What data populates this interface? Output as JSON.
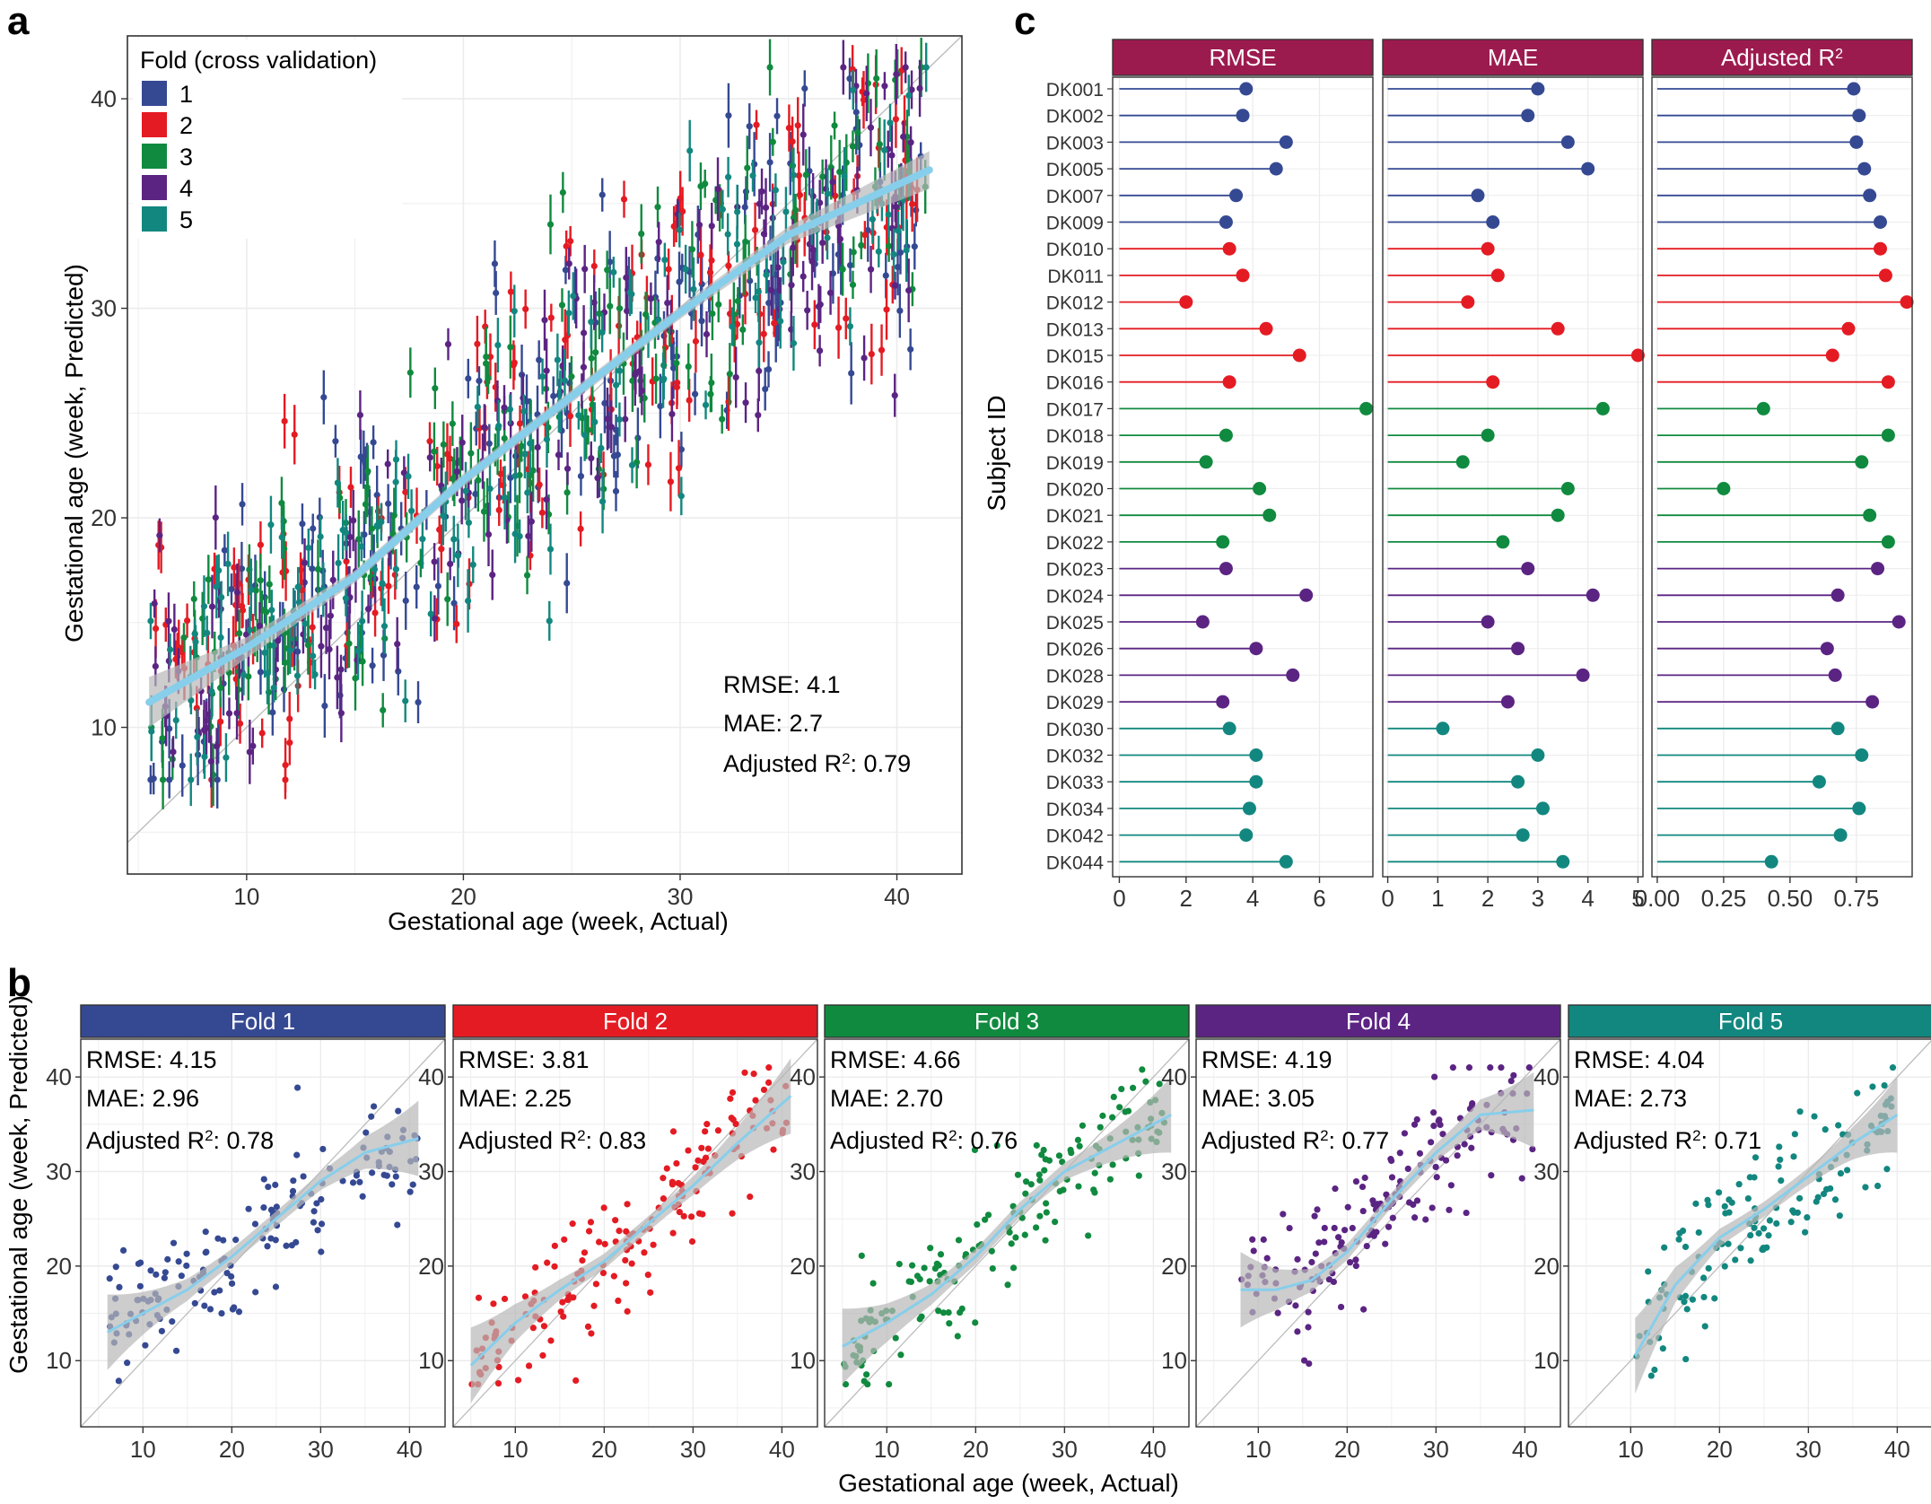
{
  "panel_labels": {
    "a": "a",
    "b": "b",
    "c": "c"
  },
  "colors": {
    "fold1": "#354993",
    "fold2": "#e41b23",
    "fold3": "#108a3f",
    "fold4": "#5b2483",
    "fold5": "#12877f",
    "fit_line": "#87ceeb",
    "ci_band": "#b8b8b8",
    "strip_metric": "#9c1b4f",
    "grid": "#ececec",
    "identity": "#bdbdbd"
  },
  "chart_data": [
    {
      "id": "panel-a",
      "type": "scatter",
      "title": "",
      "xlabel": "Gestational age (week, Actual)",
      "ylabel": "Gestational age (week, Predicted)",
      "xlim": [
        4.5,
        43
      ],
      "ylim": [
        3,
        43
      ],
      "xticks": [
        10,
        20,
        30,
        40
      ],
      "yticks": [
        10,
        20,
        30,
        40
      ],
      "grid": true,
      "legend": {
        "title": "Fold (cross validation)",
        "placement": "top-left",
        "entries": [
          "1",
          "2",
          "3",
          "4",
          "5"
        ]
      },
      "annotations": {
        "rmse": "RMSE: 4.1",
        "mae": "MAE: 2.7",
        "r2_prefix": "Adjusted R",
        "r2_sup": "2",
        "r2_suffix": ": 0.79"
      },
      "points_per_fold": [
        180,
        180,
        180,
        180,
        160
      ],
      "point_error_bar_halfwidth_weeks": 1.1,
      "smooth_fit": {
        "x": [
          5.5,
          10,
          15,
          20,
          25,
          30,
          35,
          41.5
        ],
        "y": [
          11.2,
          13.8,
          17.2,
          21.8,
          25.8,
          29.8,
          33.5,
          36.6
        ],
        "ci": [
          1.2,
          0.5,
          0.3,
          0.3,
          0.3,
          0.3,
          0.4,
          0.9
        ]
      },
      "identity_line": true
    },
    {
      "id": "panel-b",
      "type": "scatter",
      "xlabel": "Gestational age (week, Actual)",
      "ylabel": "Gestational age (week, Predicted)",
      "xlim": [
        3,
        44
      ],
      "ylim": [
        3,
        44
      ],
      "xticks": [
        10,
        20,
        30,
        40
      ],
      "yticks": [
        10,
        20,
        30,
        40
      ],
      "grid": true,
      "facets": [
        {
          "label": "Fold 1",
          "rmse": "RMSE: 4.15",
          "mae": "MAE: 2.96",
          "r2": ": 0.78",
          "n": 150,
          "x_range": [
            6,
            41
          ],
          "smooth": {
            "x": [
              6,
              10,
              15,
              20,
              25,
              30,
              35,
              41
            ],
            "y": [
              13,
              15,
              17.5,
              21,
              25,
              29,
              32,
              33.5
            ]
          }
        },
        {
          "label": "Fold 2",
          "rmse": "RMSE: 3.81",
          "mae": "MAE: 2.25",
          "r2": ": 0.83",
          "n": 160,
          "x_range": [
            5,
            41
          ],
          "smooth": {
            "x": [
              5,
              10,
              15,
              20,
              25,
              30,
              35,
              41
            ],
            "y": [
              9.5,
              14,
              17.5,
              20.5,
              24.5,
              28.5,
              33,
              38
            ]
          }
        },
        {
          "label": "Fold 3",
          "rmse": "RMSE: 4.66",
          "mae": "MAE: 2.70",
          "r2": ": 0.76",
          "n": 160,
          "x_range": [
            5,
            42
          ],
          "smooth": {
            "x": [
              5,
              10,
              15,
              20,
              25,
              30,
              35,
              42
            ],
            "y": [
              11.5,
              14,
              17,
              21,
              26,
              30,
              32.5,
              36
            ]
          }
        },
        {
          "label": "Fold 4",
          "rmse": "RMSE: 4.19",
          "mae": "MAE: 3.05",
          "r2": ": 0.77",
          "n": 160,
          "x_range": [
            8,
            41
          ],
          "smooth": {
            "x": [
              8,
              12,
              16,
              20,
              25,
              30,
              35,
              41
            ],
            "y": [
              17.5,
              17.5,
              18.5,
              21.5,
              27,
              32,
              36,
              36.5
            ]
          }
        },
        {
          "label": "Fold 5",
          "rmse": "RMSE: 4.04",
          "mae": "MAE: 2.73",
          "r2": ": 0.71",
          "n": 130,
          "x_range": [
            10.5,
            40
          ],
          "smooth": {
            "x": [
              10.5,
              15,
              20,
              25,
              30,
              35,
              40
            ],
            "y": [
              10.5,
              18,
              23,
              26,
              29.5,
              33,
              36
            ]
          }
        }
      ],
      "r2_prefix": "Adjusted R",
      "r2_sup": "2"
    },
    {
      "id": "panel-c",
      "type": "lollipop",
      "ylabel": "Subject ID",
      "subjects": [
        "DK001",
        "DK002",
        "DK003",
        "DK005",
        "DK007",
        "DK009",
        "DK010",
        "DK011",
        "DK012",
        "DK013",
        "DK015",
        "DK016",
        "DK017",
        "DK018",
        "DK019",
        "DK020",
        "DK021",
        "DK022",
        "DK023",
        "DK024",
        "DK025",
        "DK026",
        "DK028",
        "DK029",
        "DK030",
        "DK032",
        "DK033",
        "DK034",
        "DK042",
        "DK044"
      ],
      "subject_fold": [
        1,
        1,
        1,
        1,
        1,
        1,
        2,
        2,
        2,
        2,
        2,
        2,
        3,
        3,
        3,
        3,
        3,
        3,
        4,
        4,
        4,
        4,
        4,
        4,
        5,
        5,
        5,
        5,
        5,
        5
      ],
      "metrics": [
        {
          "name": "RMSE",
          "label": "RMSE",
          "xlim": [
            -0.2,
            7.6
          ],
          "xticks": [
            0,
            2,
            4,
            6
          ],
          "tick_labels": [
            "0",
            "2",
            "4",
            "6"
          ],
          "values": [
            3.8,
            3.7,
            5.0,
            4.7,
            3.5,
            3.2,
            3.3,
            3.7,
            2.0,
            4.4,
            5.4,
            3.3,
            7.4,
            3.2,
            2.6,
            4.2,
            4.5,
            3.1,
            3.2,
            5.6,
            2.5,
            4.1,
            5.2,
            3.1,
            3.3,
            4.1,
            4.1,
            3.9,
            3.8,
            5.0
          ]
        },
        {
          "name": "MAE",
          "label": "MAE",
          "xlim": [
            -0.1,
            5.1
          ],
          "xticks": [
            0,
            1,
            2,
            3,
            4,
            5
          ],
          "tick_labels": [
            "0",
            "1",
            "2",
            "3",
            "4",
            "5"
          ],
          "values": [
            3.0,
            2.8,
            3.6,
            4.0,
            1.8,
            2.1,
            2.0,
            2.2,
            1.6,
            3.4,
            5.0,
            2.1,
            4.3,
            2.0,
            1.5,
            3.6,
            3.4,
            2.3,
            2.8,
            4.1,
            2.0,
            2.6,
            3.9,
            2.4,
            1.1,
            3.0,
            2.6,
            3.1,
            2.7,
            3.5
          ]
        },
        {
          "name": "Adjusted R2",
          "label_prefix": "Adjusted R",
          "label_sup": "2",
          "xlim": [
            -0.02,
            0.96
          ],
          "xticks": [
            0,
            0.25,
            0.5,
            0.75
          ],
          "tick_labels": [
            "0.00",
            "0.25",
            "0.50",
            "0.75"
          ],
          "values": [
            0.74,
            0.76,
            0.75,
            0.78,
            0.8,
            0.84,
            0.84,
            0.86,
            0.94,
            0.72,
            0.66,
            0.87,
            0.4,
            0.87,
            0.77,
            0.25,
            0.8,
            0.87,
            0.83,
            0.68,
            0.91,
            0.64,
            0.67,
            0.81,
            0.68,
            0.77,
            0.61,
            0.76,
            0.69,
            0.43
          ]
        }
      ]
    }
  ]
}
